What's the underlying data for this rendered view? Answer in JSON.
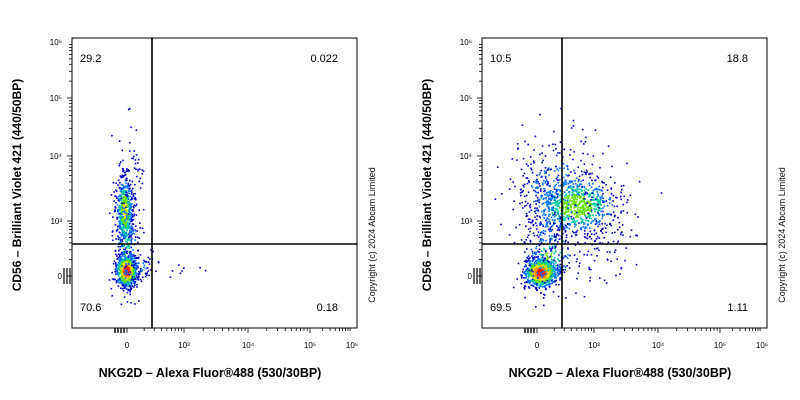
{
  "chart_data": [
    {
      "type": "scatter",
      "title": "",
      "xlabel": "NKG2D – Alexa Fluor®488 (530/30BP)",
      "ylabel": "CD56 – Brilliant Violet 421 (440/50BP)",
      "x_ticks": [
        "0",
        "10³",
        "10⁴",
        "10⁵",
        "10⁶"
      ],
      "y_ticks": [
        "0",
        "10³",
        "10⁴",
        "10⁵",
        "10⁶"
      ],
      "scale": "biexponential",
      "quadrant_percentages": {
        "upper_left": "29.2",
        "upper_right": "0.022",
        "lower_left": "70.6",
        "lower_right": "0.18"
      },
      "copyright": "Copyright (c) 2024 Abcam Limited"
    },
    {
      "type": "scatter",
      "title": "",
      "xlabel": "NKG2D – Alexa Fluor®488 (530/30BP)",
      "ylabel": "CD56 – Brilliant Violet 421 (440/50BP)",
      "x_ticks": [
        "0",
        "10³",
        "10⁴",
        "10⁵",
        "10⁶"
      ],
      "y_ticks": [
        "0",
        "10³",
        "10⁴",
        "10⁵",
        "10⁶"
      ],
      "scale": "biexponential",
      "quadrant_percentages": {
        "upper_left": "10.5",
        "upper_right": "18.8",
        "lower_left": "69.5",
        "lower_right": "1.11"
      },
      "copyright": "Copyright (c) 2024 Abcam Limited"
    }
  ],
  "colors": {
    "density_low": "#0000c8",
    "density_mid": "#00c8c8",
    "density_high": "#ff2000",
    "gate": "#000000"
  }
}
